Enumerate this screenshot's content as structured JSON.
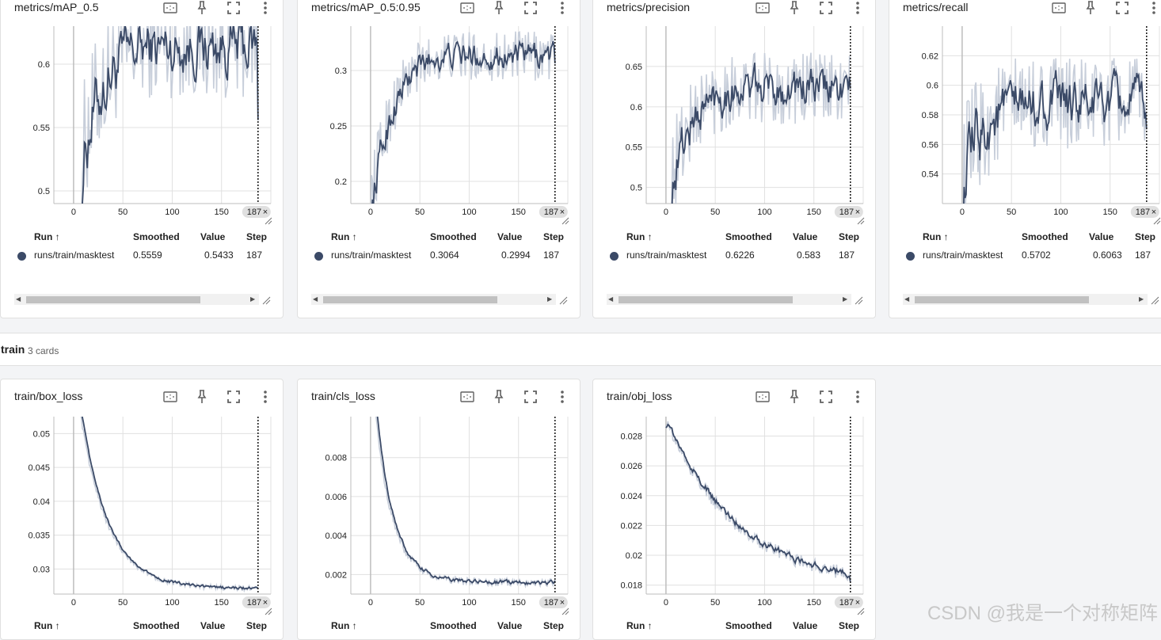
{
  "colors": {
    "accent": "#3b4a67",
    "raw": "#c7ceda",
    "grid": "#e0e0e0"
  },
  "icons": [
    "fit-domain-icon",
    "pin-icon",
    "fullscreen-icon",
    "more-vert-icon"
  ],
  "table_headers": {
    "run": "Run",
    "smoothed": "Smoothed",
    "value": "Value",
    "step": "Step"
  },
  "step_badge": "187",
  "group": {
    "name": "train",
    "count": "3 cards"
  },
  "watermark": "CSDN @我是一个对称矩阵",
  "cards": [
    {
      "title": "metrics/mAP_0.5",
      "run": "runs/train/masktest",
      "smoothed": "0.5559",
      "value": "0.5433",
      "step": "187"
    },
    {
      "title": "metrics/mAP_0.5:0.95",
      "run": "runs/train/masktest",
      "smoothed": "0.3064",
      "value": "0.2994",
      "step": "187"
    },
    {
      "title": "metrics/precision",
      "run": "runs/train/masktest",
      "smoothed": "0.6226",
      "value": "0.583",
      "step": "187"
    },
    {
      "title": "metrics/recall",
      "run": "runs/train/masktest",
      "smoothed": "0.5702",
      "value": "0.6063",
      "step": "187"
    },
    {
      "title": "train/box_loss"
    },
    {
      "title": "train/cls_loss"
    },
    {
      "title": "train/obj_loss"
    }
  ],
  "chart_data": [
    {
      "type": "line",
      "title": "metrics/mAP_0.5",
      "series_kind": "noisy-rising",
      "x_ticks": [
        "0",
        "50",
        "100",
        "150"
      ],
      "y_ticks": [
        "0.5",
        "0.55",
        "0.6"
      ],
      "xlim": [
        -20,
        200
      ],
      "ylim": [
        0.49,
        0.63
      ],
      "y_tick_values": [
        0.5,
        0.55,
        0.6
      ],
      "y_start": 0.49,
      "y_end": 0.62,
      "last_y": 0.5559,
      "noise": 0.045,
      "min_step": 8
    },
    {
      "type": "line",
      "title": "metrics/mAP_0.5:0.95",
      "series_kind": "noisy-rising",
      "x_ticks": [
        "0",
        "50",
        "100",
        "150"
      ],
      "y_ticks": [
        "0.2",
        "0.25",
        "0.3"
      ],
      "xlim": [
        -20,
        200
      ],
      "ylim": [
        0.18,
        0.34
      ],
      "y_tick_values": [
        0.2,
        0.25,
        0.3
      ],
      "y_start": 0.18,
      "y_end": 0.32,
      "last_y": 0.3064,
      "noise": 0.025,
      "min_step": 0
    },
    {
      "type": "line",
      "title": "metrics/precision",
      "series_kind": "noisy-rising",
      "x_ticks": [
        "0",
        "50",
        "100",
        "150"
      ],
      "y_ticks": [
        "0.5",
        "0.55",
        "0.6",
        "0.65"
      ],
      "xlim": [
        -20,
        200
      ],
      "ylim": [
        0.48,
        0.7
      ],
      "y_tick_values": [
        0.5,
        0.55,
        0.6,
        0.65
      ],
      "y_start": 0.48,
      "y_end": 0.63,
      "last_y": 0.6226,
      "noise": 0.05,
      "min_step": 5
    },
    {
      "type": "line",
      "title": "metrics/recall",
      "series_kind": "noisy-rising",
      "x_ticks": [
        "0",
        "50",
        "100",
        "150"
      ],
      "y_ticks": [
        "0.54",
        "0.56",
        "0.58",
        "0.6",
        "0.62"
      ],
      "xlim": [
        -20,
        200
      ],
      "ylim": [
        0.52,
        0.64
      ],
      "y_tick_values": [
        0.54,
        0.56,
        0.58,
        0.6,
        0.62
      ],
      "y_start": 0.54,
      "y_end": 0.59,
      "last_y": 0.5702,
      "noise": 0.035,
      "min_step": 1
    },
    {
      "type": "line",
      "title": "train/box_loss",
      "series_kind": "decay",
      "x_ticks": [
        "0",
        "50",
        "100",
        "150"
      ],
      "y_ticks": [
        "0.03",
        "0.035",
        "0.04",
        "0.045",
        "0.05"
      ],
      "xlim": [
        -20,
        200
      ],
      "ylim": [
        0.0263,
        0.0525
      ],
      "y_tick_values": [
        0.03,
        0.035,
        0.04,
        0.045,
        0.05
      ],
      "y_start": 0.06,
      "y_end": 0.0271,
      "last_y": 0.0272,
      "noise": 0.0004,
      "tau": 28
    },
    {
      "type": "line",
      "title": "train/cls_loss",
      "series_kind": "decay",
      "x_ticks": [
        "0",
        "50",
        "100",
        "150"
      ],
      "y_ticks": [
        "0.002",
        "0.004",
        "0.006",
        "0.008"
      ],
      "xlim": [
        -20,
        200
      ],
      "ylim": [
        0.001,
        0.0101
      ],
      "y_tick_values": [
        0.002,
        0.004,
        0.006,
        0.008
      ],
      "y_start": 0.013,
      "y_end": 0.0016,
      "last_y": 0.0017,
      "noise": 0.0002,
      "tau": 18
    },
    {
      "type": "line",
      "title": "train/obj_loss",
      "series_kind": "decay",
      "x_ticks": [
        "0",
        "50",
        "100",
        "150"
      ],
      "y_ticks": [
        "0.018",
        "0.02",
        "0.022",
        "0.024",
        "0.026",
        "0.028"
      ],
      "xlim": [
        -20,
        200
      ],
      "ylim": [
        0.0174,
        0.0293
      ],
      "y_tick_values": [
        0.018,
        0.02,
        0.022,
        0.024,
        0.026,
        0.028
      ],
      "y_start": 0.029,
      "y_end": 0.0178,
      "last_y": 0.0182,
      "noise": 0.0005,
      "tau": 75
    }
  ]
}
